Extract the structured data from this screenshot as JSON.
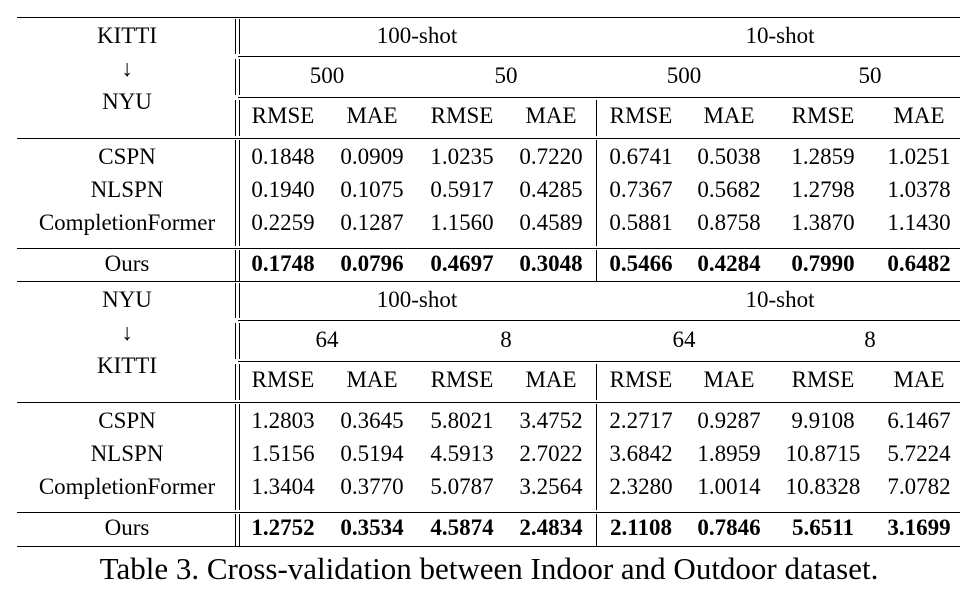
{
  "caption": "Table 3. Cross-validation between Indoor and Outdoor dataset.",
  "metric_labels": [
    "RMSE",
    "MAE",
    "RMSE",
    "MAE",
    "RMSE",
    "MAE",
    "RMSE",
    "MAE"
  ],
  "blocks": [
    {
      "direction": {
        "source": "KITTI",
        "arrow": "↓",
        "target": "NYU"
      },
      "shots": [
        "100-shot",
        "10-shot"
      ],
      "samples": [
        "500",
        "50",
        "500",
        "50"
      ],
      "rows": [
        {
          "method": "CSPN",
          "values": [
            "0.1848",
            "0.0909",
            "1.0235",
            "0.7220",
            "0.6741",
            "0.5038",
            "1.2859",
            "1.0251"
          ]
        },
        {
          "method": "NLSPN",
          "values": [
            "0.1940",
            "0.1075",
            "0.5917",
            "0.4285",
            "0.7367",
            "0.5682",
            "1.2798",
            "1.0378"
          ]
        },
        {
          "method": "CompletionFormer",
          "values": [
            "0.2259",
            "0.1287",
            "1.1560",
            "0.4589",
            "0.5881",
            "0.8758",
            "1.3870",
            "1.1430"
          ]
        }
      ],
      "ours": {
        "method": "Ours",
        "values": [
          "0.1748",
          "0.0796",
          "0.4697",
          "0.3048",
          "0.5466",
          "0.4284",
          "0.7990",
          "0.6482"
        ]
      }
    },
    {
      "direction": {
        "source": "NYU",
        "arrow": "↓",
        "target": "KITTI"
      },
      "shots": [
        "100-shot",
        "10-shot"
      ],
      "samples": [
        "64",
        "8",
        "64",
        "8"
      ],
      "rows": [
        {
          "method": "CSPN",
          "values": [
            "1.2803",
            "0.3645",
            "5.8021",
            "3.4752",
            "2.2717",
            "0.9287",
            "9.9108",
            "6.1467"
          ]
        },
        {
          "method": "NLSPN",
          "values": [
            "1.5156",
            "0.5194",
            "4.5913",
            "2.7022",
            "3.6842",
            "1.8959",
            "10.8715",
            "5.7224"
          ]
        },
        {
          "method": "CompletionFormer",
          "values": [
            "1.3404",
            "0.3770",
            "5.0787",
            "3.2564",
            "2.3280",
            "1.0014",
            "10.8328",
            "7.0782"
          ]
        }
      ],
      "ours": {
        "method": "Ours",
        "values": [
          "1.2752",
          "0.3534",
          "4.5874",
          "2.4834",
          "2.1108",
          "0.7846",
          "5.6511",
          "3.1699"
        ]
      }
    }
  ]
}
